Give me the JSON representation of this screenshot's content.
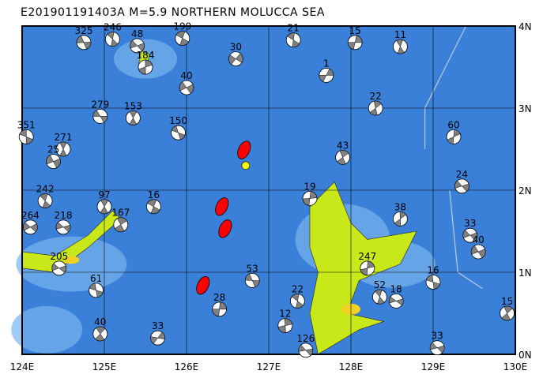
{
  "title": "E201901191403A  M=5.9  NORTHERN MOLUCCA SEA",
  "map": {
    "lon_range": [
      124,
      130
    ],
    "lat_range": [
      0,
      4
    ],
    "x_ticks": [
      "124E",
      "125E",
      "126E",
      "127E",
      "128E",
      "129E",
      "130E"
    ],
    "y_ticks": [
      "0N",
      "1N",
      "2N",
      "3N",
      "4N"
    ],
    "colors": {
      "ocean": "#3a7fd8",
      "shallow": "#79b4f0",
      "land_low": "#c8e81a",
      "land_high": "#f0d020",
      "highlight_event": "#ff0000",
      "epicenter": "#ffff00",
      "compression": "#808080"
    }
  },
  "epicenter": {
    "lon": 126.72,
    "lat": 2.3
  },
  "highlight_events": [
    {
      "lon": 126.7,
      "lat": 2.49
    },
    {
      "lon": 126.43,
      "lat": 1.8
    },
    {
      "lon": 126.47,
      "lat": 1.53
    },
    {
      "lon": 126.2,
      "lat": 0.84
    }
  ],
  "events": [
    {
      "lon": 124.75,
      "lat": 3.8,
      "depth": "325"
    },
    {
      "lon": 125.1,
      "lat": 3.84,
      "depth": "246"
    },
    {
      "lon": 125.4,
      "lat": 3.76,
      "depth": "48"
    },
    {
      "lon": 125.95,
      "lat": 3.85,
      "depth": "199"
    },
    {
      "lon": 127.3,
      "lat": 3.83,
      "depth": "21"
    },
    {
      "lon": 128.05,
      "lat": 3.8,
      "depth": "15"
    },
    {
      "lon": 128.6,
      "lat": 3.75,
      "depth": "11"
    },
    {
      "lon": 124.95,
      "lat": 2.9,
      "depth": "279"
    },
    {
      "lon": 125.35,
      "lat": 2.88,
      "depth": "153"
    },
    {
      "lon": 124.05,
      "lat": 2.65,
      "depth": "351"
    },
    {
      "lon": 124.5,
      "lat": 2.5,
      "depth": "271"
    },
    {
      "lon": 124.38,
      "lat": 2.35,
      "depth": "25"
    },
    {
      "lon": 124.28,
      "lat": 1.87,
      "depth": "242"
    },
    {
      "lon": 124.5,
      "lat": 1.55,
      "depth": "218"
    },
    {
      "lon": 124.1,
      "lat": 1.55,
      "depth": "264"
    },
    {
      "lon": 125.0,
      "lat": 1.8,
      "depth": "97"
    },
    {
      "lon": 125.2,
      "lat": 1.58,
      "depth": "167"
    },
    {
      "lon": 124.45,
      "lat": 1.05,
      "depth": "205"
    },
    {
      "lon": 124.9,
      "lat": 0.78,
      "depth": "61"
    },
    {
      "lon": 124.95,
      "lat": 0.25,
      "depth": "40"
    },
    {
      "lon": 125.65,
      "lat": 0.2,
      "depth": "33"
    },
    {
      "lon": 125.6,
      "lat": 1.8,
      "depth": "16"
    },
    {
      "lon": 127.2,
      "lat": 0.35,
      "depth": "12"
    },
    {
      "lon": 127.45,
      "lat": 0.05,
      "depth": "126"
    },
    {
      "lon": 127.35,
      "lat": 0.65,
      "depth": "22"
    },
    {
      "lon": 128.2,
      "lat": 1.05,
      "depth": "247"
    },
    {
      "lon": 128.35,
      "lat": 0.7,
      "depth": "52"
    },
    {
      "lon": 128.55,
      "lat": 0.65,
      "depth": "18"
    },
    {
      "lon": 129.0,
      "lat": 0.88,
      "depth": "16"
    },
    {
      "lon": 129.9,
      "lat": 0.5,
      "depth": "15"
    },
    {
      "lon": 129.05,
      "lat": 0.08,
      "depth": "33"
    },
    {
      "lon": 129.45,
      "lat": 1.45,
      "depth": "33"
    },
    {
      "lon": 129.55,
      "lat": 1.25,
      "depth": "40"
    },
    {
      "lon": 129.35,
      "lat": 2.05,
      "depth": "24"
    },
    {
      "lon": 129.25,
      "lat": 2.65,
      "depth": "60"
    },
    {
      "lon": 128.6,
      "lat": 1.65,
      "depth": "38"
    },
    {
      "lon": 127.5,
      "lat": 1.9,
      "depth": "19"
    },
    {
      "lon": 126.6,
      "lat": 3.6,
      "depth": "30"
    },
    {
      "lon": 126.0,
      "lat": 3.25,
      "depth": "40"
    },
    {
      "lon": 125.5,
      "lat": 3.5,
      "depth": "184"
    },
    {
      "lon": 125.9,
      "lat": 2.7,
      "depth": "150"
    },
    {
      "lon": 127.7,
      "lat": 3.4,
      "depth": "1"
    },
    {
      "lon": 128.3,
      "lat": 3.0,
      "depth": "22"
    },
    {
      "lon": 127.9,
      "lat": 2.4,
      "depth": "43"
    },
    {
      "lon": 126.4,
      "lat": 0.55,
      "depth": "28"
    },
    {
      "lon": 126.8,
      "lat": 0.9,
      "depth": "53"
    }
  ]
}
